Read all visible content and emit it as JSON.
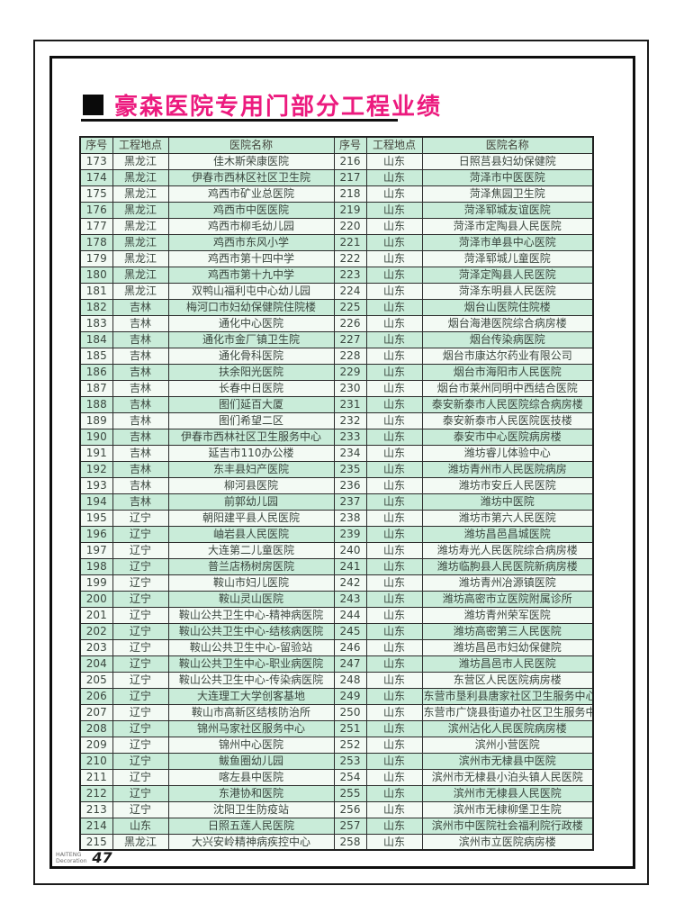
{
  "page": {
    "title": "豪森医院专用门部分工程业绩",
    "footer": {
      "brand_line1": "HAITENG",
      "brand_line2": "Decoration",
      "page_number": "47"
    }
  },
  "colors": {
    "title_pink": "#ec1a7e",
    "row_green": "#c9ecd9",
    "row_pale": "#f3faf4",
    "frame_black": "#0e0e0e",
    "table_text": "#3a463e"
  },
  "table": {
    "headers": [
      "序号",
      "工程地点",
      "医院名称",
      "序号",
      "工程地点",
      "医院名称"
    ],
    "rows": [
      [
        "173",
        "黑龙江",
        "佳木斯荣康医院",
        "216",
        "山东",
        "日照莒县妇幼保健院"
      ],
      [
        "174",
        "黑龙江",
        "伊春市西林区社区卫生院",
        "217",
        "山东",
        "菏泽市中医医院"
      ],
      [
        "175",
        "黑龙江",
        "鸡西市矿业总医院",
        "218",
        "山东",
        "菏泽焦园卫生院"
      ],
      [
        "176",
        "黑龙江",
        "鸡西市中医医院",
        "219",
        "山东",
        "菏泽郓城友谊医院"
      ],
      [
        "177",
        "黑龙江",
        "鸡西市柳毛幼儿园",
        "220",
        "山东",
        "菏泽市定陶县人民医院"
      ],
      [
        "178",
        "黑龙江",
        "鸡西市东风小学",
        "221",
        "山东",
        "菏泽市单县中心医院"
      ],
      [
        "179",
        "黑龙江",
        "鸡西市第十四中学",
        "222",
        "山东",
        "菏泽郓城儿童医院"
      ],
      [
        "180",
        "黑龙江",
        "鸡西市第十九中学",
        "223",
        "山东",
        "菏泽定陶县人民医院"
      ],
      [
        "181",
        "黑龙江",
        "双鸭山福利屯中心幼儿园",
        "224",
        "山东",
        "菏泽东明县人民医院"
      ],
      [
        "182",
        "吉林",
        "梅河口市妇幼保健院住院楼",
        "225",
        "山东",
        "烟台山医院住院楼"
      ],
      [
        "183",
        "吉林",
        "通化中心医院",
        "226",
        "山东",
        "烟台海港医院综合病房楼"
      ],
      [
        "184",
        "吉林",
        "通化市金厂镇卫生院",
        "227",
        "山东",
        "烟台传染病医院"
      ],
      [
        "185",
        "吉林",
        "通化骨科医院",
        "228",
        "山东",
        "烟台市康达尔药业有限公司"
      ],
      [
        "186",
        "吉林",
        "扶余阳光医院",
        "229",
        "山东",
        "烟台市海阳市人民医院"
      ],
      [
        "187",
        "吉林",
        "长春中日医院",
        "230",
        "山东",
        "烟台市莱州同明中西结合医院"
      ],
      [
        "188",
        "吉林",
        "图们延百大厦",
        "231",
        "山东",
        "泰安新泰市人民医院综合病房楼"
      ],
      [
        "189",
        "吉林",
        "图们希望二区",
        "232",
        "山东",
        "泰安新泰市人民医院医技楼"
      ],
      [
        "190",
        "吉林",
        "伊春市西林社区卫生服务中心",
        "233",
        "山东",
        "泰安市中心医院病房楼"
      ],
      [
        "191",
        "吉林",
        "延吉市110办公楼",
        "234",
        "山东",
        "潍坊睿儿体验中心"
      ],
      [
        "192",
        "吉林",
        "东丰县妇产医院",
        "235",
        "山东",
        "潍坊青州市人民医院病房"
      ],
      [
        "193",
        "吉林",
        "柳河县医院",
        "236",
        "山东",
        "潍坊市安丘人民医院"
      ],
      [
        "194",
        "吉林",
        "前郭幼儿园",
        "237",
        "山东",
        "潍坊中医院"
      ],
      [
        "195",
        "辽宁",
        "朝阳建平县人民医院",
        "238",
        "山东",
        "潍坊市第六人民医院"
      ],
      [
        "196",
        "辽宁",
        "岫岩县人民医院",
        "239",
        "山东",
        "潍坊昌邑昌城医院"
      ],
      [
        "197",
        "辽宁",
        "大连第二儿童医院",
        "240",
        "山东",
        "潍坊寿光人民医院综合病房楼"
      ],
      [
        "198",
        "辽宁",
        "普兰店杨树房医院",
        "241",
        "山东",
        "潍坊临朐县人民医院新病房楼"
      ],
      [
        "199",
        "辽宁",
        "鞍山市妇儿医院",
        "242",
        "山东",
        "潍坊青州冶源镇医院"
      ],
      [
        "200",
        "辽宁",
        "鞍山灵山医院",
        "243",
        "山东",
        "潍坊高密市立医院附属诊所"
      ],
      [
        "201",
        "辽宁",
        "鞍山公共卫生中心-精神病医院",
        "244",
        "山东",
        "潍坊青州荣军医院"
      ],
      [
        "202",
        "辽宁",
        "鞍山公共卫生中心-结核病医院",
        "245",
        "山东",
        "潍坊高密第三人民医院"
      ],
      [
        "203",
        "辽宁",
        "鞍山公共卫生中心-留验站",
        "246",
        "山东",
        "潍坊昌邑市妇幼保健院"
      ],
      [
        "204",
        "辽宁",
        "鞍山公共卫生中心-职业病医院",
        "247",
        "山东",
        "潍坊昌邑市人民医院"
      ],
      [
        "205",
        "辽宁",
        "鞍山公共卫生中心-传染病医院",
        "248",
        "山东",
        "东营区人民医院病房楼"
      ],
      [
        "206",
        "辽宁",
        "大连理工大学创客基地",
        "249",
        "山东",
        "东营市垦利县唐家社区卫生服务中心"
      ],
      [
        "207",
        "辽宁",
        "鞍山市高新区结核防治所",
        "250",
        "山东",
        "东营市广饶县街道办社区卫生服务中心"
      ],
      [
        "208",
        "辽宁",
        "锦州马家社区服务中心",
        "251",
        "山东",
        "滨州沾化人民医院病房楼"
      ],
      [
        "209",
        "辽宁",
        "锦州中心医院",
        "252",
        "山东",
        "滨州小营医院"
      ],
      [
        "210",
        "辽宁",
        "鲅鱼圈幼儿园",
        "253",
        "山东",
        "滨州市无棣县中医院"
      ],
      [
        "211",
        "辽宁",
        "喀左县中医院",
        "254",
        "山东",
        "滨州市无棣县小泊头镇人民医院"
      ],
      [
        "212",
        "辽宁",
        "东港协和医院",
        "255",
        "山东",
        "滨州市无棣县人民医院"
      ],
      [
        "213",
        "辽宁",
        "沈阳卫生防疫站",
        "256",
        "山东",
        "滨州市无棣柳堡卫生院"
      ],
      [
        "214",
        "山东",
        "日照五莲人民医院",
        "257",
        "山东",
        "滨州市中医院社会福利院行政楼"
      ],
      [
        "215",
        "黑龙江",
        "大兴安岭精神病疾控中心",
        "258",
        "山东",
        "滨州市立医院病房楼"
      ]
    ]
  }
}
